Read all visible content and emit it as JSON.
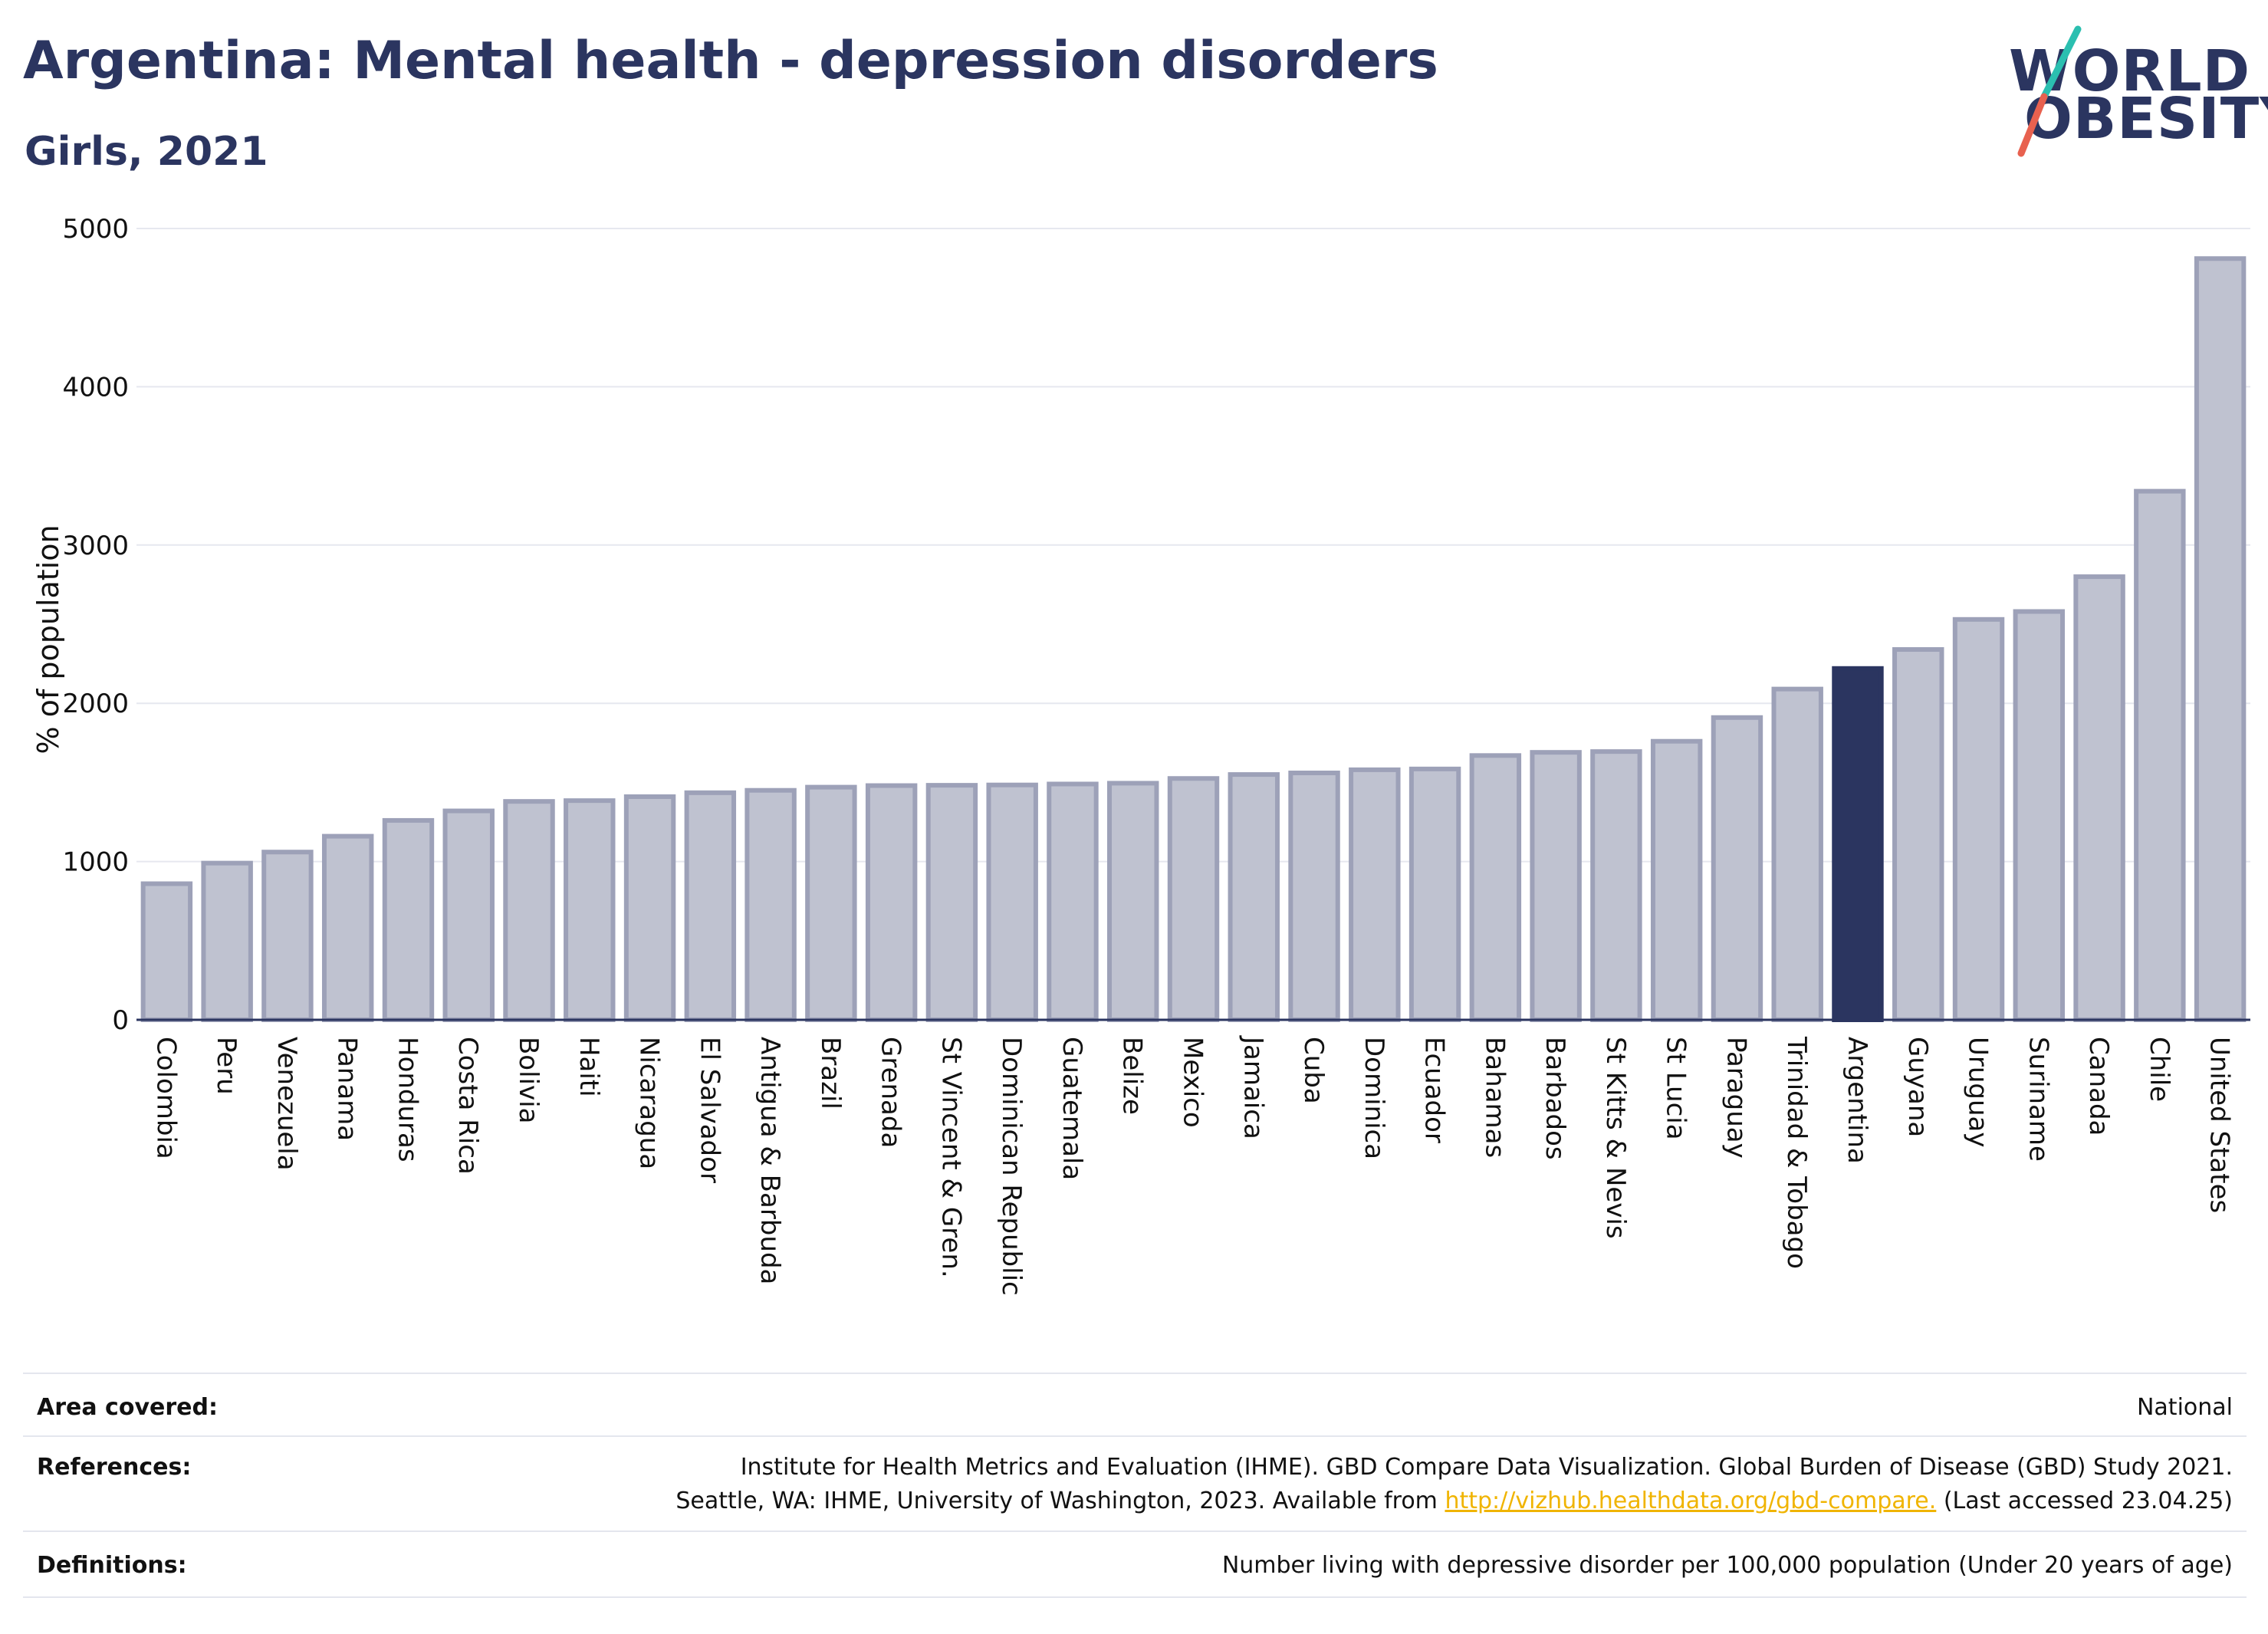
{
  "title": "Argentina: Mental health - depression disorders",
  "subtitle": "Girls, 2021",
  "logo": {
    "line1": "WORLD",
    "line2": "OBESITY",
    "accent_teal": "#2bbfb0",
    "accent_red": "#e8614f"
  },
  "colors": {
    "bar": "#bfc2d0",
    "bar_stroke": "#9da1b8",
    "highlight": "#2b3560",
    "grid": "#e6e8ef",
    "axis": "#2b3560"
  },
  "chart_data": {
    "type": "bar",
    "title": "Argentina: Mental health - depression disorders",
    "subtitle": "Girls, 2021",
    "xlabel": "",
    "ylabel": "% of population",
    "ylim": [
      0,
      5000
    ],
    "yticks": [
      0,
      1000,
      2000,
      3000,
      4000,
      5000
    ],
    "grid": true,
    "highlight": "Argentina",
    "categories": [
      "Colombia",
      "Peru",
      "Venezuela",
      "Panama",
      "Honduras",
      "Costa Rica",
      "Bolivia",
      "Haiti",
      "Nicaragua",
      "El Salvador",
      "Antigua & Barbuda",
      "Brazil",
      "Grenada",
      "St Vincent & Gren.",
      "Dominican Republic",
      "Guatemala",
      "Belize",
      "Mexico",
      "Jamaica",
      "Cuba",
      "Dominica",
      "Ecuador",
      "Bahamas",
      "Barbados",
      "St Kitts & Nevis",
      "St Lucia",
      "Paraguay",
      "Trinidad & Tobago",
      "Argentina",
      "Guyana",
      "Uruguay",
      "Suriname",
      "Canada",
      "Chile",
      "United States"
    ],
    "values": [
      860,
      990,
      1060,
      1160,
      1260,
      1320,
      1380,
      1385,
      1410,
      1435,
      1450,
      1470,
      1480,
      1482,
      1484,
      1490,
      1495,
      1525,
      1550,
      1560,
      1580,
      1585,
      1670,
      1690,
      1695,
      1760,
      1910,
      2090,
      2220,
      2340,
      2530,
      2580,
      2800,
      3340,
      4810
    ]
  },
  "info": {
    "area_label": "Area covered:",
    "area_value": "National",
    "references_label": "References:",
    "references_line1": "Institute for Health Metrics and Evaluation (IHME). GBD Compare Data Visualization. Global Burden of Disease (GBD) Study 2021.",
    "references_line2_prefix": "Seattle, WA: IHME, University of Washington, 2023. Available from ",
    "references_link": "http://vizhub.healthdata.org/gbd-compare.",
    "references_line2_suffix": " (Last accessed 23.04.25)",
    "definitions_label": "Definitions:",
    "definitions_value": "Number living with depressive disorder per 100,000 population (Under 20 years of age)"
  }
}
